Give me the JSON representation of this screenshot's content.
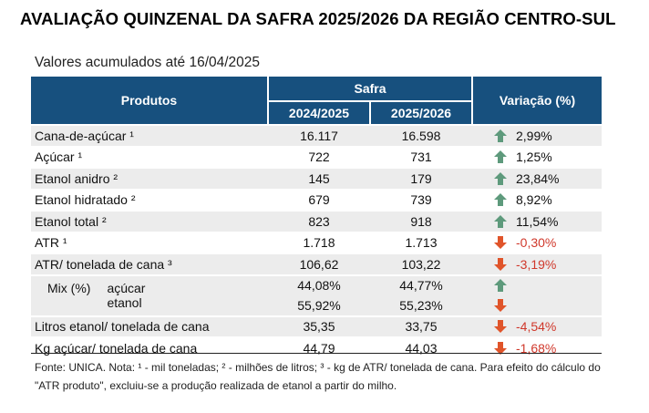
{
  "title": "AVALIAÇÃO QUINZENAL DA SAFRA 2025/2026 DA REGIÃO CENTRO-SUL",
  "subtitle": "Valores acumulados até 16/04/2025",
  "table": {
    "col_products": "Produtos",
    "col_safra": "Safra",
    "col_y1": "2024/2025",
    "col_y2": "2025/2026",
    "col_variation": "Variação (%)",
    "rows": [
      {
        "name": "Cana-de-açúcar ¹",
        "y1": "16.117",
        "y2": "16.598",
        "variation": "2,99%",
        "direction": "up"
      },
      {
        "name": "Açúcar ¹",
        "y1": "722",
        "y2": "731",
        "variation": "1,25%",
        "direction": "up"
      },
      {
        "name": "Etanol anidro ²",
        "y1": "145",
        "y2": "179",
        "variation": "23,84%",
        "direction": "up"
      },
      {
        "name": "Etanol hidratado ²",
        "y1": "679",
        "y2": "739",
        "variation": "8,92%",
        "direction": "up"
      },
      {
        "name": "Etanol total ²",
        "y1": "823",
        "y2": "918",
        "variation": "11,54%",
        "direction": "up"
      },
      {
        "name": "ATR ¹",
        "y1": "1.718",
        "y2": "1.713",
        "variation": "-0,30%",
        "direction": "down"
      },
      {
        "name": "ATR/ tonelada de cana ³",
        "y1": "106,62",
        "y2": "103,22",
        "variation": "-3,19%",
        "direction": "down"
      }
    ],
    "mix": {
      "label": "Mix (%)",
      "rows": [
        {
          "name": "açúcar",
          "y1": "44,08%",
          "y2": "44,77%",
          "direction": "up"
        },
        {
          "name": "etanol",
          "y1": "55,92%",
          "y2": "55,23%",
          "direction": "down"
        }
      ]
    },
    "rows_after": [
      {
        "name": "Litros etanol/ tonelada de cana",
        "y1": "35,35",
        "y2": "33,75",
        "variation": "-4,54%",
        "direction": "down"
      },
      {
        "name": "Kg açúcar/ tonelada de cana",
        "y1": "44,79",
        "y2": "44,03",
        "variation": "-1,68%",
        "direction": "down"
      }
    ]
  },
  "colors": {
    "header_bg": "#17507e",
    "up_arrow": "#5e9a7c",
    "down_arrow": "#e0542a",
    "negative_text": "#d0382b"
  },
  "icons": {
    "up": "arrow-up-icon",
    "down": "arrow-down-icon"
  },
  "note": "Fonte: UNICA. Nota: ¹ - mil toneladas; ² - milhões de litros; ³ - kg de ATR/ tonelada de cana. Para efeito do cálculo do \"ATR produto\", excluiu-se a produção realizada de etanol a partir do milho."
}
